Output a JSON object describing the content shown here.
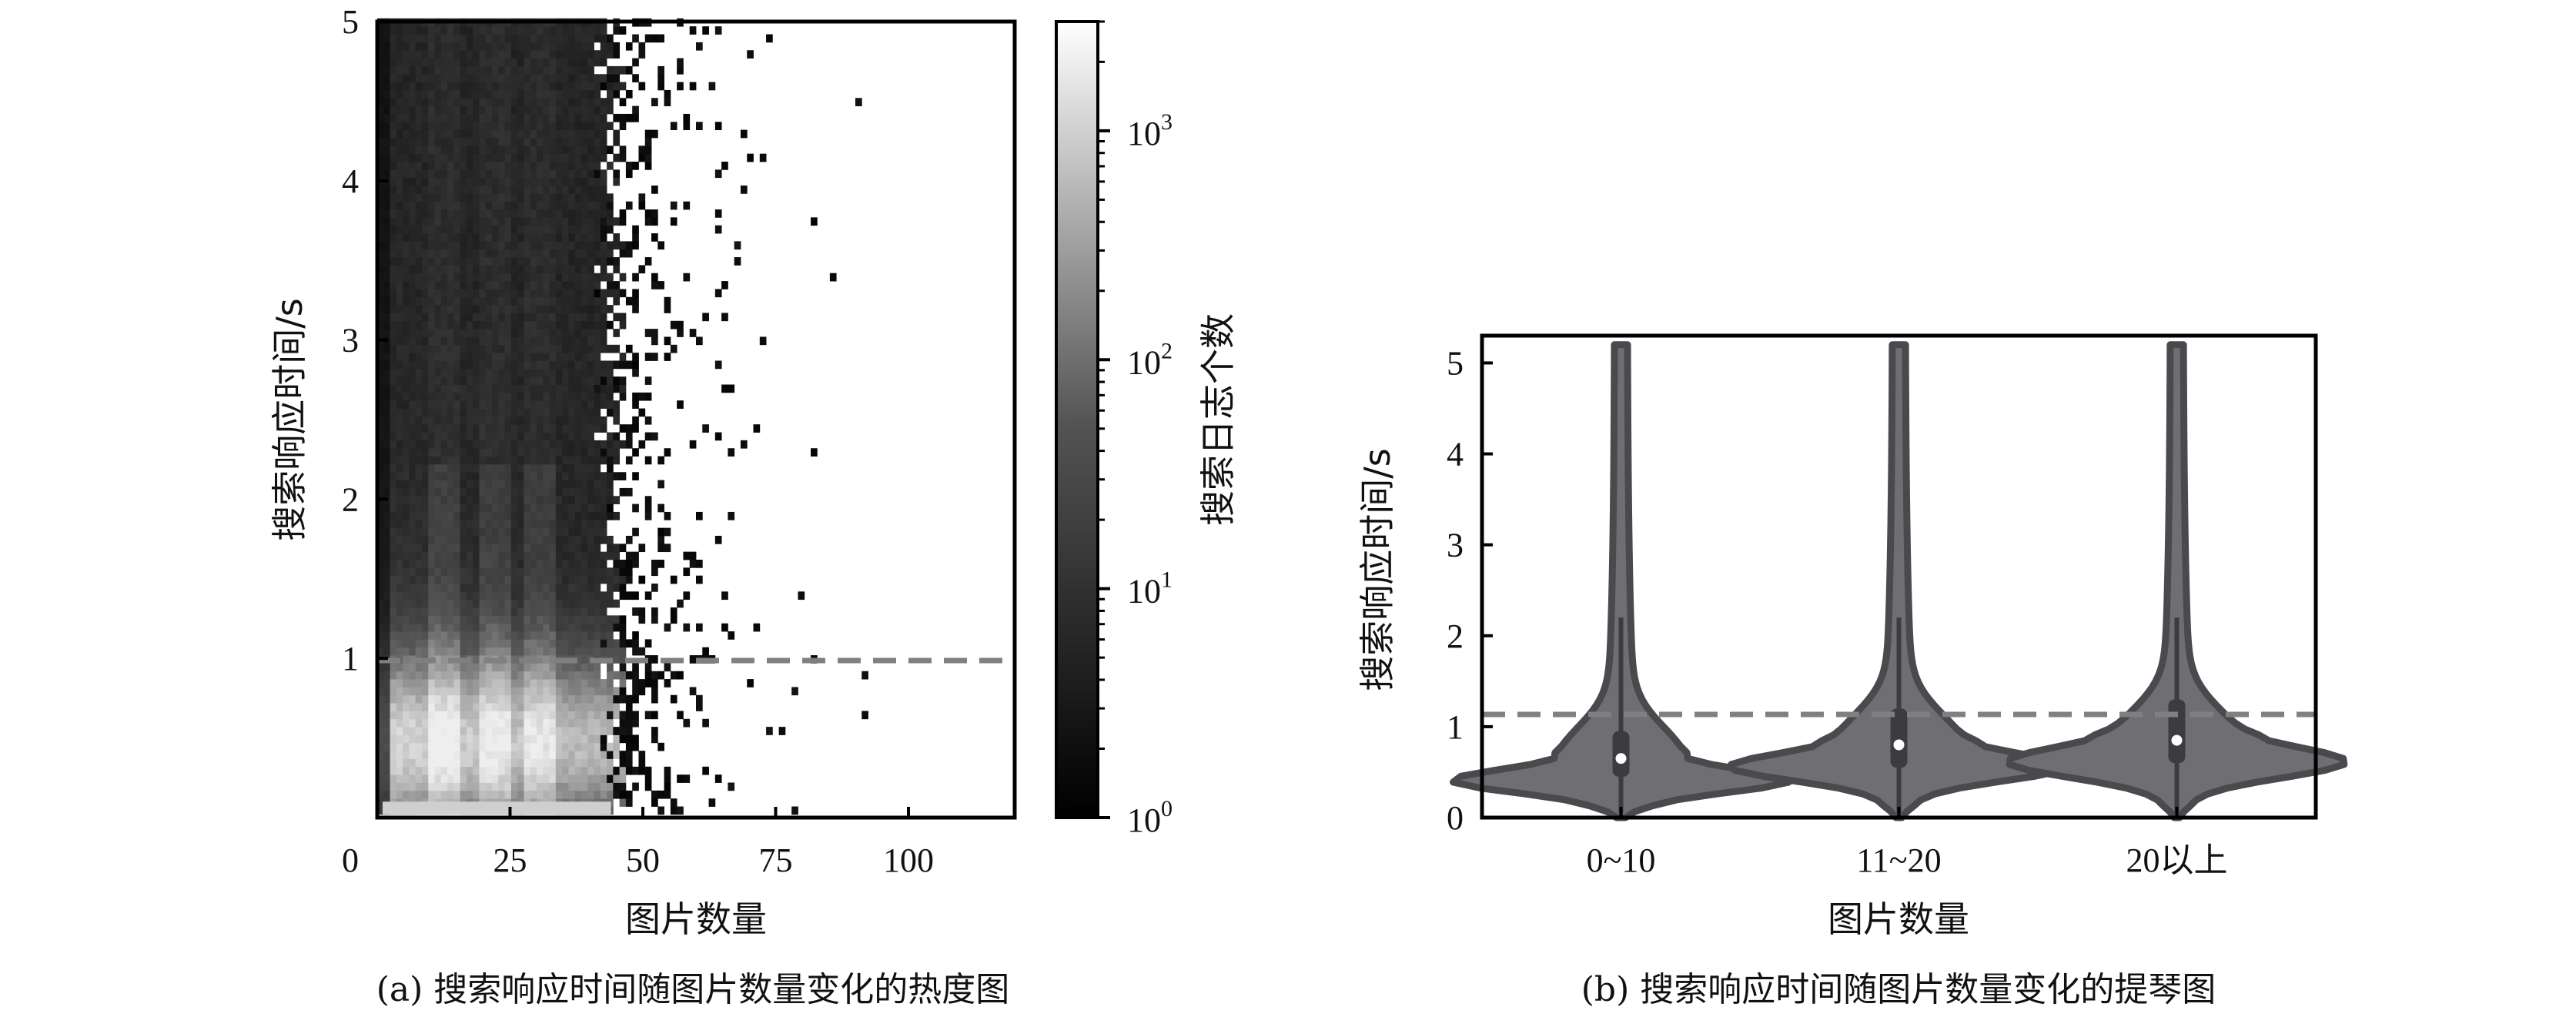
{
  "chart_data": [
    {
      "type": "heatmap",
      "panel": "a",
      "xlabel": "图片数量",
      "ylabel": "搜索响应时间/s",
      "caption": "(a)  搜索响应时间随图片数量变化的热度图",
      "xlim": [
        0,
        120
      ],
      "ylim": [
        0,
        5
      ],
      "xticks": [
        "0",
        "25",
        "50",
        "75",
        "100"
      ],
      "yticks": [
        "1",
        "2",
        "3",
        "4",
        "5"
      ],
      "reference_line": {
        "y": 1.0,
        "style": "dashed",
        "color": "#808080"
      },
      "colorbar": {
        "label": "搜索日志个数",
        "scale": "log",
        "range": [
          1,
          3000
        ],
        "ticks": [
          "10",
          "10",
          "10",
          "10"
        ],
        "tick_exponents": [
          "0",
          "1",
          "2",
          "3"
        ]
      },
      "colormap": [
        "#000000",
        "#555555",
        "#ffffff"
      ],
      "grid": false
    },
    {
      "type": "violin",
      "panel": "b",
      "xlabel": "图片数量",
      "ylabel": "搜索响应时间/s",
      "caption": "(b)  搜索响应时间随图片数量变化的提琴图",
      "categories": [
        "0~10",
        "11~20",
        "20以上"
      ],
      "ylim": [
        0,
        5.3
      ],
      "yticks": [
        "0",
        "1",
        "2",
        "3",
        "4",
        "5"
      ],
      "medians": [
        0.65,
        0.8,
        0.85
      ],
      "q1": [
        0.45,
        0.55,
        0.6
      ],
      "q3": [
        0.95,
        1.2,
        1.3
      ],
      "max": [
        5.2,
        5.2,
        5.2
      ],
      "min": [
        0.0,
        0.0,
        0.0
      ],
      "reference_line": {
        "y": 1.05,
        "style": "dashed",
        "color": "#808080"
      },
      "fill_color": "#6e6e73",
      "edge_color": "#4a4a4e"
    }
  ]
}
